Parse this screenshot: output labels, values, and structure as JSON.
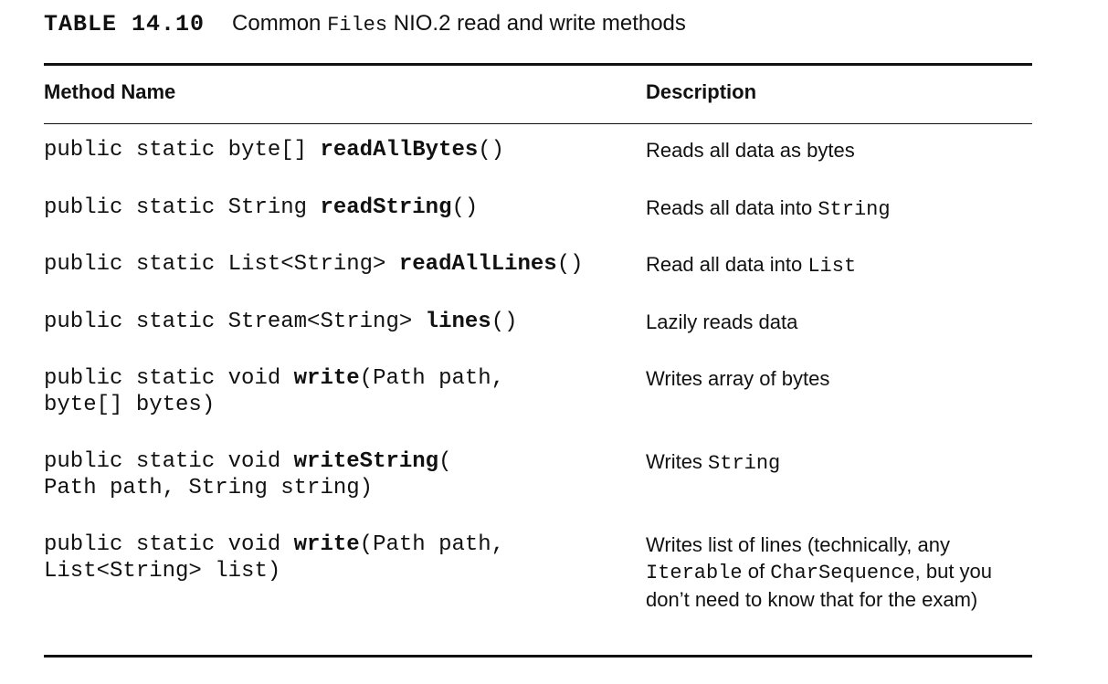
{
  "caption": {
    "label": "TABLE 14.10",
    "title_pre": "Common ",
    "title_code": "Files",
    "title_post": " NIO.2 read and write methods"
  },
  "table": {
    "headers": {
      "method": "Method Name",
      "description": "Description"
    },
    "rows": [
      {
        "method_line1_pre": "public static byte[] ",
        "method_line1_name": "readAllBytes",
        "method_line1_post": "()",
        "method_line2": "",
        "desc_pre": "Reads all data as bytes"
      },
      {
        "method_line1_pre": "public static String ",
        "method_line1_name": "readString",
        "method_line1_post": "()",
        "method_line2": "",
        "desc_pre": "Reads all data into ",
        "desc_code": "String"
      },
      {
        "method_line1_pre": "public static List<String> ",
        "method_line1_name": "readAllLines",
        "method_line1_post": "()",
        "method_line2": "",
        "desc_pre": "Read all data into ",
        "desc_code": "List"
      },
      {
        "method_line1_pre": "public static Stream<String> ",
        "method_line1_name": "lines",
        "method_line1_post": "()",
        "method_line2": "",
        "desc_pre": "Lazily reads data"
      },
      {
        "method_line1_pre": "public static void ",
        "method_line1_name": "write",
        "method_line1_post": "(Path path,",
        "method_line2": "byte[] bytes)",
        "desc_pre": "Writes array of bytes"
      },
      {
        "method_line1_pre": "public static void ",
        "method_line1_name": "writeString",
        "method_line1_post": "(",
        "method_line2": "Path path, String string)",
        "desc_pre": "Writes ",
        "desc_code": "String"
      },
      {
        "method_line1_pre": "public static void ",
        "method_line1_name": "write",
        "method_line1_post": "(Path path,",
        "method_line2": "List<String> list)",
        "desc_pre": "Writes list of lines (technically, any ",
        "desc_code": "Iterable",
        "desc_mid": " of ",
        "desc_code2": "CharSequence",
        "desc_post": ", but you don’t need to know that for the exam)"
      }
    ]
  }
}
